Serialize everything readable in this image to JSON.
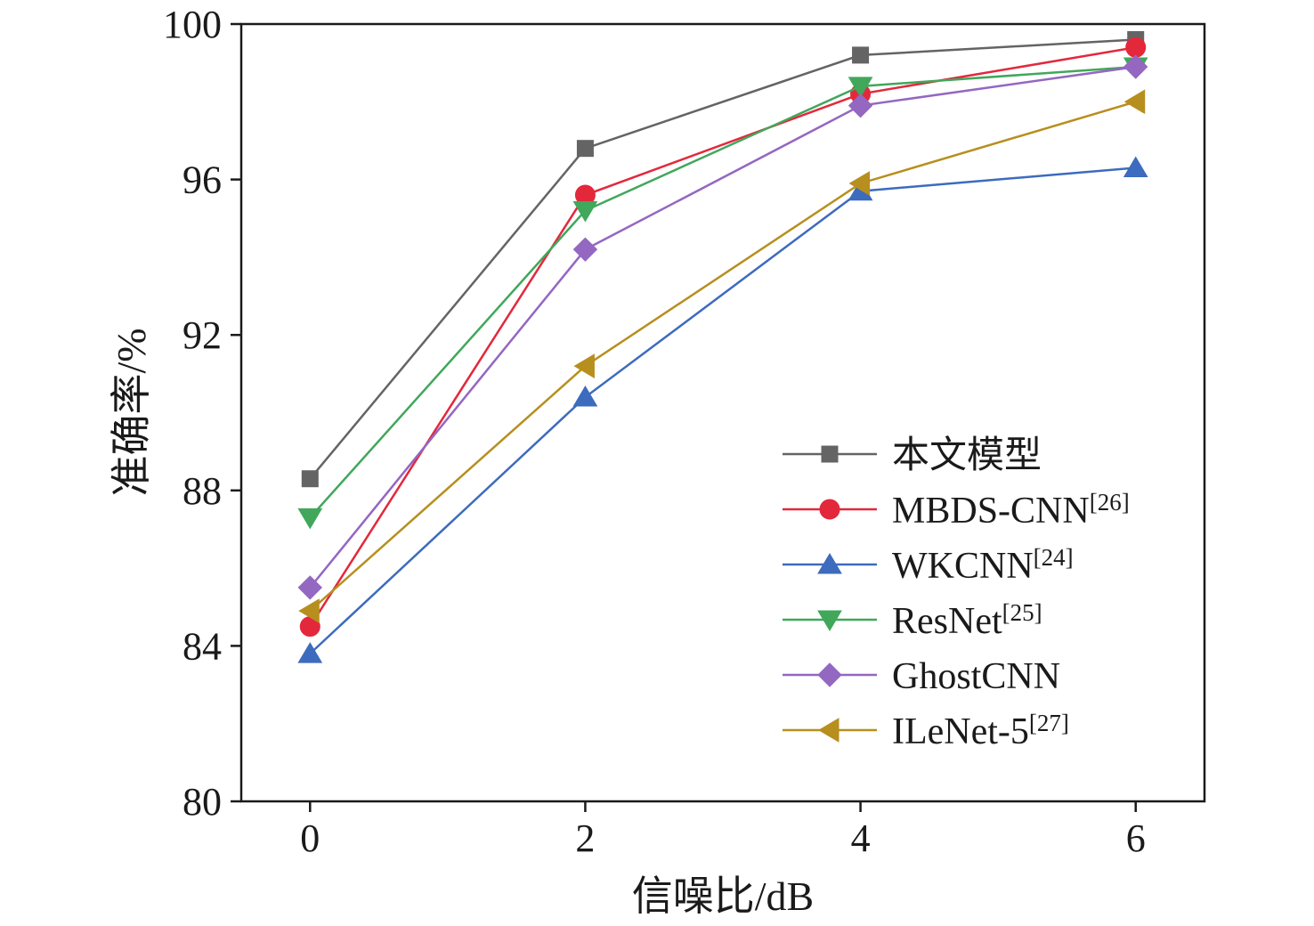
{
  "chart_data": {
    "type": "line",
    "xlabel": "信噪比/dB",
    "ylabel": "准确率/%",
    "x": [
      0,
      2,
      4,
      6
    ],
    "xlim": [
      -0.5,
      6.5
    ],
    "ylim": [
      80,
      100
    ],
    "xticks": [
      0,
      2,
      4,
      6
    ],
    "yticks": [
      80,
      84,
      88,
      92,
      96,
      100
    ],
    "grid": false,
    "legend_position": "bottom-right",
    "series": [
      {
        "name": "本文模型",
        "ref": "",
        "marker": "square",
        "color": "#646464",
        "values": [
          88.3,
          96.8,
          99.2,
          99.6
        ]
      },
      {
        "name": "MBDS-CNN",
        "ref": "[26]",
        "marker": "circle",
        "color": "#e3283c",
        "values": [
          84.5,
          95.6,
          98.2,
          99.4
        ]
      },
      {
        "name": "WKCNN",
        "ref": "[24]",
        "marker": "triangle-up",
        "color": "#3d6bbd",
        "values": [
          83.8,
          90.4,
          95.7,
          96.3
        ]
      },
      {
        "name": "ResNet",
        "ref": "[25]",
        "marker": "triangle-down",
        "color": "#41a75b",
        "values": [
          87.3,
          95.2,
          98.4,
          98.9
        ]
      },
      {
        "name": "GhostCNN",
        "ref": "",
        "marker": "diamond",
        "color": "#9467c1",
        "values": [
          85.5,
          94.2,
          97.9,
          98.9
        ]
      },
      {
        "name": "ILeNet-5",
        "ref": "[27]",
        "marker": "triangle-left",
        "color": "#b78f1e",
        "values": [
          84.9,
          91.2,
          95.9,
          98.0
        ]
      }
    ]
  }
}
